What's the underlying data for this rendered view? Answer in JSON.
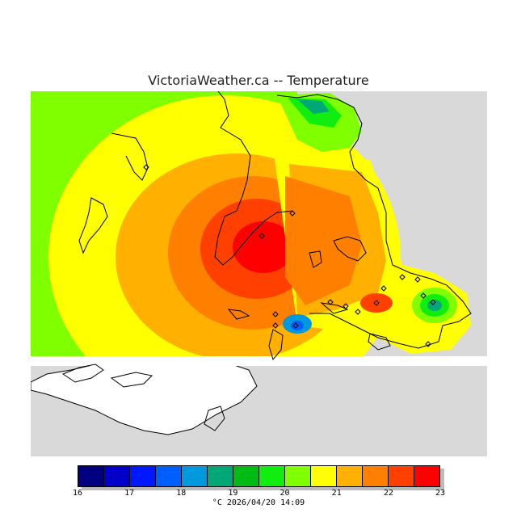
{
  "header": {
    "title": "VictoriaWeather.ca -- Temperature"
  },
  "map": {
    "variable": "Temperature",
    "unit": "°C",
    "background_color": "#d9d9d9",
    "land_no_data_color": "#ffffff",
    "coastline_color": "#000000",
    "station_marker": "diamond"
  },
  "legend": {
    "min": 16,
    "max": 23,
    "tick_labels": [
      "16",
      "17",
      "18",
      "19",
      "20",
      "21",
      "22",
      "23"
    ],
    "colors": [
      "#000080",
      "#0000c8",
      "#0018ff",
      "#0060ff",
      "#0099dd",
      "#00a878",
      "#00bb14",
      "#10ee10",
      "#80ff00",
      "#ffff00",
      "#ffb000",
      "#ff8000",
      "#ff4000",
      "#ff0000"
    ]
  },
  "footer": {
    "timestamp_text": "°C  2026/04/20 14:09"
  }
}
